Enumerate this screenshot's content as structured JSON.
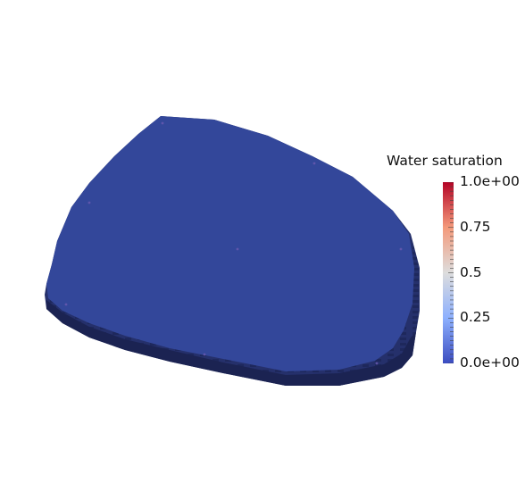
{
  "scene": {
    "background_color": "#ffffff",
    "object": "reservoir-grid",
    "top_face_color": "#33479a",
    "side_face_color": "#25306b",
    "dark_side_color": "#1b2352"
  },
  "color_legend": {
    "title": "Water saturation",
    "colormap": "coolwarm",
    "colors": {
      "low": "#3b4cc0",
      "mid": "#dddddd",
      "high": "#b40426"
    },
    "range": [
      0.0,
      1.0
    ],
    "tick_labels": [
      "1.0e+00",
      "0.75",
      "0.5",
      "0.25",
      "0.0e+00"
    ],
    "tick_values": [
      1.0,
      0.75,
      0.5,
      0.25,
      0.0
    ]
  }
}
